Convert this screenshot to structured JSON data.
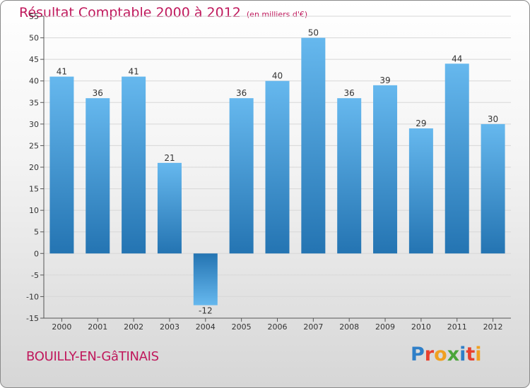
{
  "title": "Résultat Comptable 2000 à 2012",
  "subtitle": "(en milliers d'€)",
  "commune": "BOUILLY-EN-GâTINAIS",
  "logo": {
    "text": "Proxiti",
    "colors": [
      "#2f7fc8",
      "#e8402f",
      "#f0a020",
      "#4aa53a",
      "#2f7fc8",
      "#e8402f",
      "#f0a020"
    ]
  },
  "colors": {
    "bar_light": "#66b8ee",
    "bar_dark": "#2474b2",
    "title": "#c0185c",
    "grid": "#d7d7d7",
    "axis": "#555555"
  },
  "chart_data": {
    "type": "bar",
    "title": "Résultat Comptable 2000 à 2012",
    "ylabel": "",
    "xlabel": "",
    "categories": [
      "2000",
      "2001",
      "2002",
      "2003",
      "2004",
      "2005",
      "2006",
      "2007",
      "2008",
      "2009",
      "2010",
      "2011",
      "2012"
    ],
    "values": [
      41,
      36,
      41,
      21,
      -12,
      36,
      40,
      50,
      36,
      39,
      29,
      44,
      30
    ],
    "ylim": [
      -15,
      55
    ],
    "yticks": [
      -15,
      -10,
      -5,
      0,
      5,
      10,
      15,
      20,
      25,
      30,
      35,
      40,
      45,
      50,
      55
    ],
    "grid": true
  }
}
